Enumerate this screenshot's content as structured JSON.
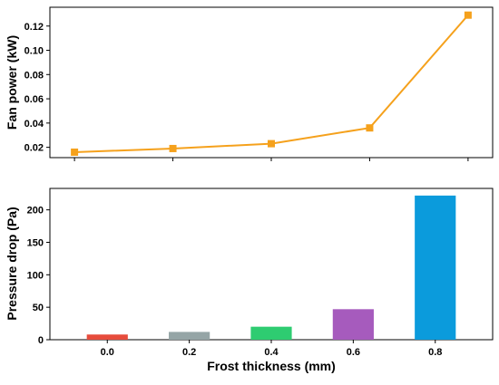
{
  "chart_data": [
    {
      "type": "line",
      "xlabel": "",
      "ylabel": "Fan power (kW)",
      "x": [
        0.0,
        0.2,
        0.4,
        0.6,
        0.8
      ],
      "series": [
        {
          "values": [
            0.016,
            0.019,
            0.023,
            0.036,
            0.129
          ],
          "color": "#f5a11c",
          "marker": "square"
        }
      ],
      "xlim": [
        -0.05,
        0.85
      ],
      "ylim": [
        0.0115,
        0.1355
      ],
      "yticks": [
        0.02,
        0.04,
        0.06,
        0.08,
        0.1,
        0.12
      ],
      "ytick_labels": [
        "0.02",
        "0.04",
        "0.06",
        "0.08",
        "0.10",
        "0.12"
      ],
      "grid": false
    },
    {
      "type": "bar",
      "xlabel": "Frost thickness (mm)",
      "ylabel": "Pressure drop (Pa)",
      "categories": [
        "0.0",
        "0.2",
        "0.4",
        "0.6",
        "0.8"
      ],
      "values": [
        8,
        12,
        20,
        47,
        222
      ],
      "colors": [
        "#e74c3c",
        "#95a5a6",
        "#2ecc71",
        "#a65bbd",
        "#0b9bdc"
      ],
      "ylim": [
        0,
        233
      ],
      "yticks": [
        0,
        50,
        100,
        150,
        200
      ],
      "ytick_labels": [
        "0",
        "50",
        "100",
        "150",
        "200"
      ],
      "grid": false
    }
  ]
}
